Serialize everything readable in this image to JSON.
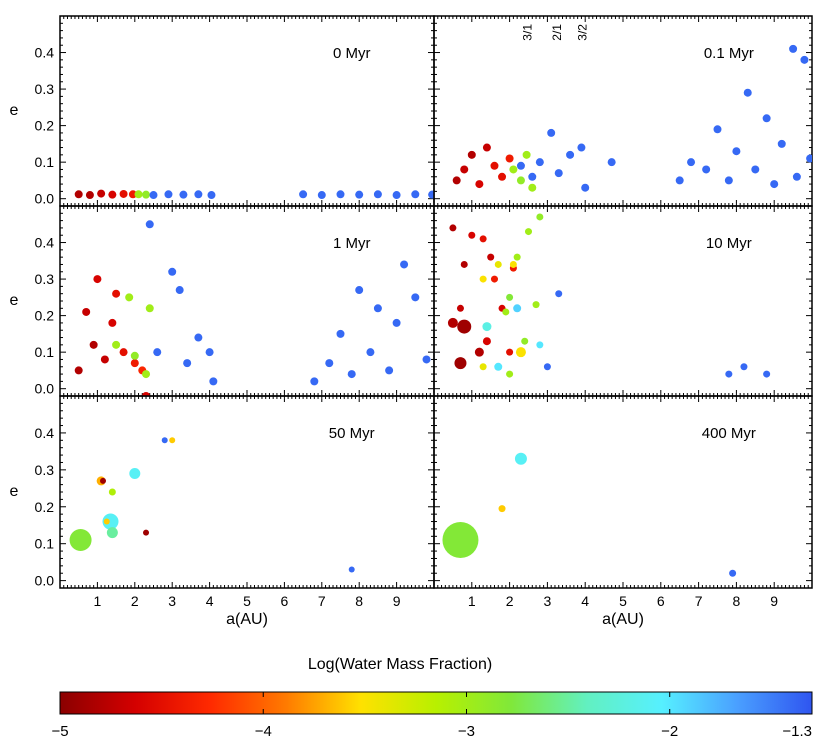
{
  "figure": {
    "colorbar_title": "Log(Water Mass Fraction)",
    "colorbar_ticks": [
      "−5",
      "−4",
      "−3",
      "−2",
      "−1.3"
    ],
    "colorbar_stops": [
      "#8b0000",
      "#d40000",
      "#ff2a00",
      "#ff7a00",
      "#ffe100",
      "#b8f000",
      "#80e83a",
      "#62f0c0",
      "#56f0ff",
      "#4aa0ff",
      "#2f55f0"
    ],
    "resonance_labels": [
      "3/1",
      "2/1",
      "3/2"
    ]
  },
  "chart_data": [
    {
      "panel": "0 Myr",
      "type": "scatter",
      "xlabel": "",
      "ylabel": "e",
      "xlim": [
        0.0,
        10.0
      ],
      "ylim": [
        -0.02,
        0.5
      ],
      "xticks": [
        "1",
        "2",
        "3",
        "4",
        "5",
        "6",
        "7",
        "8",
        "9"
      ],
      "yticks": [
        "0.0",
        "0.1",
        "0.2",
        "0.3",
        "0.4"
      ],
      "points": [
        [
          0.5,
          0.012,
          -4.8,
          4
        ],
        [
          0.8,
          0.01,
          -4.8,
          4
        ],
        [
          1.1,
          0.014,
          -4.7,
          4
        ],
        [
          1.4,
          0.011,
          -4.6,
          4
        ],
        [
          1.7,
          0.013,
          -4.5,
          4
        ],
        [
          1.95,
          0.012,
          -4.4,
          4
        ],
        [
          2.1,
          0.012,
          -3.0,
          4
        ],
        [
          2.3,
          0.011,
          -2.9,
          4
        ],
        [
          2.5,
          0.01,
          -1.4,
          4
        ],
        [
          2.9,
          0.012,
          -1.4,
          4
        ],
        [
          3.3,
          0.011,
          -1.4,
          4
        ],
        [
          3.7,
          0.012,
          -1.4,
          4
        ],
        [
          4.05,
          0.01,
          -1.4,
          4
        ],
        [
          6.5,
          0.012,
          -1.4,
          4
        ],
        [
          7.0,
          0.01,
          -1.4,
          4
        ],
        [
          7.5,
          0.012,
          -1.4,
          4
        ],
        [
          8.0,
          0.011,
          -1.4,
          4
        ],
        [
          8.5,
          0.012,
          -1.4,
          4
        ],
        [
          9.0,
          0.01,
          -1.4,
          4
        ],
        [
          9.5,
          0.012,
          -1.4,
          4
        ],
        [
          9.95,
          0.011,
          -1.4,
          4
        ]
      ]
    },
    {
      "panel": "0.1 Myr",
      "type": "scatter",
      "xlabel": "",
      "ylabel": "",
      "xlim": [
        0.0,
        10.0
      ],
      "ylim": [
        -0.02,
        0.5
      ],
      "resonances_au": [
        2.5,
        3.28,
        3.95
      ],
      "points": [
        [
          0.6,
          0.05,
          -4.8,
          4
        ],
        [
          0.8,
          0.08,
          -4.7,
          4
        ],
        [
          1.0,
          0.12,
          -4.8,
          4
        ],
        [
          1.2,
          0.04,
          -4.6,
          4
        ],
        [
          1.4,
          0.14,
          -4.7,
          4
        ],
        [
          1.6,
          0.09,
          -4.5,
          4
        ],
        [
          1.8,
          0.06,
          -4.5,
          4
        ],
        [
          2.0,
          0.11,
          -4.4,
          4
        ],
        [
          2.1,
          0.08,
          -3.0,
          4
        ],
        [
          2.3,
          0.05,
          -2.9,
          4
        ],
        [
          2.45,
          0.12,
          -3.0,
          4
        ],
        [
          2.6,
          0.03,
          -3.0,
          4
        ],
        [
          2.3,
          0.09,
          -1.4,
          4
        ],
        [
          2.6,
          0.06,
          -1.4,
          4
        ],
        [
          2.8,
          0.1,
          -1.4,
          4
        ],
        [
          3.1,
          0.18,
          -1.4,
          4
        ],
        [
          3.3,
          0.07,
          -1.4,
          4
        ],
        [
          3.6,
          0.12,
          -1.4,
          4
        ],
        [
          3.9,
          0.14,
          -1.4,
          4
        ],
        [
          4.0,
          0.03,
          -1.4,
          4
        ],
        [
          4.7,
          0.1,
          -1.4,
          4
        ],
        [
          6.5,
          0.05,
          -1.4,
          4
        ],
        [
          6.8,
          0.1,
          -1.4,
          4
        ],
        [
          7.2,
          0.08,
          -1.4,
          4
        ],
        [
          7.5,
          0.19,
          -1.4,
          4
        ],
        [
          7.8,
          0.05,
          -1.4,
          4
        ],
        [
          8.0,
          0.13,
          -1.4,
          4
        ],
        [
          8.3,
          0.29,
          -1.4,
          4
        ],
        [
          8.5,
          0.08,
          -1.4,
          4
        ],
        [
          8.8,
          0.22,
          -1.4,
          4
        ],
        [
          9.0,
          0.04,
          -1.4,
          4
        ],
        [
          9.2,
          0.15,
          -1.4,
          4
        ],
        [
          9.5,
          0.41,
          -1.4,
          4
        ],
        [
          9.6,
          0.06,
          -1.4,
          4
        ],
        [
          9.8,
          0.38,
          -1.4,
          4
        ],
        [
          9.95,
          0.11,
          -1.4,
          4
        ]
      ]
    },
    {
      "panel": "1 Myr",
      "type": "scatter",
      "xlabel": "",
      "ylabel": "e",
      "xlim": [
        0.0,
        10.0
      ],
      "ylim": [
        -0.02,
        0.5
      ],
      "points": [
        [
          0.5,
          0.05,
          -4.8,
          4
        ],
        [
          0.7,
          0.21,
          -4.7,
          4
        ],
        [
          0.9,
          0.12,
          -4.8,
          4
        ],
        [
          1.0,
          0.3,
          -4.6,
          4
        ],
        [
          1.2,
          0.08,
          -4.7,
          4
        ],
        [
          1.4,
          0.18,
          -4.6,
          4
        ],
        [
          1.5,
          0.26,
          -4.5,
          4
        ],
        [
          1.7,
          0.1,
          -4.5,
          4
        ],
        [
          2.0,
          0.07,
          -4.4,
          4
        ],
        [
          2.2,
          0.05,
          -4.3,
          4
        ],
        [
          2.3,
          -0.02,
          -4.6,
          4
        ],
        [
          1.5,
          0.12,
          -3.0,
          4
        ],
        [
          1.85,
          0.25,
          -3.0,
          4
        ],
        [
          2.0,
          0.09,
          -2.9,
          4
        ],
        [
          2.3,
          0.04,
          -3.0,
          4
        ],
        [
          2.4,
          0.22,
          -3.0,
          4
        ],
        [
          2.4,
          0.45,
          -1.4,
          4
        ],
        [
          2.6,
          0.1,
          -1.4,
          4
        ],
        [
          3.0,
          0.32,
          -1.4,
          4
        ],
        [
          3.2,
          0.27,
          -1.4,
          4
        ],
        [
          3.4,
          0.07,
          -1.4,
          4
        ],
        [
          3.7,
          0.14,
          -1.4,
          4
        ],
        [
          4.0,
          0.1,
          -1.4,
          4
        ],
        [
          4.1,
          0.02,
          -1.4,
          4
        ],
        [
          6.8,
          0.02,
          -1.4,
          4
        ],
        [
          7.2,
          0.07,
          -1.4,
          4
        ],
        [
          7.5,
          0.15,
          -1.4,
          4
        ],
        [
          7.8,
          0.04,
          -1.4,
          4
        ],
        [
          8.0,
          0.27,
          -1.4,
          4
        ],
        [
          8.3,
          0.1,
          -1.4,
          4
        ],
        [
          8.5,
          0.22,
          -1.4,
          4
        ],
        [
          8.8,
          0.05,
          -1.4,
          4
        ],
        [
          9.0,
          0.18,
          -1.4,
          4
        ],
        [
          9.2,
          0.34,
          -1.4,
          4
        ],
        [
          9.5,
          0.25,
          -1.4,
          4
        ],
        [
          9.8,
          0.08,
          -1.4,
          4
        ]
      ]
    },
    {
      "panel": "10 Myr",
      "type": "scatter",
      "xlabel": "",
      "ylabel": "",
      "xlim": [
        0.0,
        10.0
      ],
      "ylim": [
        -0.02,
        0.5
      ],
      "points": [
        [
          0.5,
          0.44,
          -4.8,
          3.5
        ],
        [
          0.7,
          0.22,
          -4.7,
          3.5
        ],
        [
          0.8,
          0.34,
          -4.8,
          3.5
        ],
        [
          1.0,
          0.42,
          -4.6,
          3.5
        ],
        [
          1.3,
          0.41,
          -4.5,
          3.5
        ],
        [
          1.5,
          0.36,
          -4.7,
          3.5
        ],
        [
          1.6,
          0.3,
          -4.4,
          3.5
        ],
        [
          1.8,
          0.22,
          -4.6,
          3.5
        ],
        [
          2.0,
          0.1,
          -4.5,
          3.5
        ],
        [
          2.1,
          0.33,
          -4.4,
          3.5
        ],
        [
          0.5,
          0.18,
          -4.8,
          5
        ],
        [
          0.8,
          0.17,
          -4.9,
          7
        ],
        [
          0.7,
          0.07,
          -4.9,
          6
        ],
        [
          1.2,
          0.1,
          -4.8,
          4.5
        ],
        [
          1.4,
          0.13,
          -4.6,
          4
        ],
        [
          1.3,
          0.3,
          -3.5,
          3.5
        ],
        [
          1.7,
          0.34,
          -3.4,
          3.5
        ],
        [
          1.3,
          0.06,
          -3.4,
          3.5
        ],
        [
          2.1,
          0.34,
          -3.5,
          3.5
        ],
        [
          2.3,
          0.1,
          -3.5,
          5
        ],
        [
          1.9,
          0.21,
          -3.0,
          3.5
        ],
        [
          2.0,
          0.25,
          -2.8,
          3.5
        ],
        [
          2.2,
          0.36,
          -3.0,
          3.5
        ],
        [
          2.4,
          0.13,
          -2.9,
          3.5
        ],
        [
          2.5,
          0.43,
          -3.0,
          3.5
        ],
        [
          2.8,
          0.47,
          -2.9,
          3.5
        ],
        [
          2.7,
          0.23,
          -3.0,
          3.5
        ],
        [
          2.0,
          0.04,
          -3.0,
          3.5
        ],
        [
          1.4,
          0.17,
          -2.2,
          4.5
        ],
        [
          1.7,
          0.06,
          -2.0,
          4
        ],
        [
          2.2,
          0.22,
          -1.9,
          4
        ],
        [
          2.8,
          0.12,
          -2.0,
          3.5
        ],
        [
          3.0,
          0.06,
          -1.4,
          3.5
        ],
        [
          3.3,
          0.26,
          -1.4,
          3.5
        ],
        [
          7.8,
          0.04,
          -1.4,
          3.5
        ],
        [
          8.2,
          0.06,
          -1.4,
          3.5
        ],
        [
          8.8,
          0.04,
          -1.4,
          3.5
        ]
      ]
    },
    {
      "panel": "50 Myr",
      "type": "scatter",
      "xlabel": "a(AU)",
      "ylabel": "e",
      "xlim": [
        0.0,
        10.0
      ],
      "ylim": [
        -0.02,
        0.5
      ],
      "points": [
        [
          0.55,
          0.11,
          -2.8,
          11
        ],
        [
          1.1,
          0.27,
          -3.7,
          4.5
        ],
        [
          1.15,
          0.27,
          -4.9,
          3
        ],
        [
          1.4,
          0.24,
          -3.1,
          3.5
        ],
        [
          1.35,
          0.16,
          -2.1,
          8
        ],
        [
          1.25,
          0.16,
          -3.6,
          3
        ],
        [
          1.4,
          0.13,
          -2.5,
          5.5
        ],
        [
          2.0,
          0.29,
          -2.1,
          5.5
        ],
        [
          2.3,
          0.13,
          -4.9,
          3
        ],
        [
          2.8,
          0.38,
          -1.4,
          3
        ],
        [
          3.0,
          0.38,
          -3.6,
          3
        ],
        [
          7.8,
          0.03,
          -1.4,
          3
        ]
      ]
    },
    {
      "panel": "400 Myr",
      "type": "scatter",
      "xlabel": "a(AU)",
      "ylabel": "",
      "xlim": [
        0.0,
        10.0
      ],
      "ylim": [
        -0.02,
        0.5
      ],
      "points": [
        [
          0.7,
          0.11,
          -2.8,
          18
        ],
        [
          1.8,
          0.195,
          -3.6,
          3.5
        ],
        [
          2.3,
          0.33,
          -2.1,
          6
        ],
        [
          7.9,
          0.02,
          -1.4,
          3.5
        ]
      ]
    }
  ]
}
